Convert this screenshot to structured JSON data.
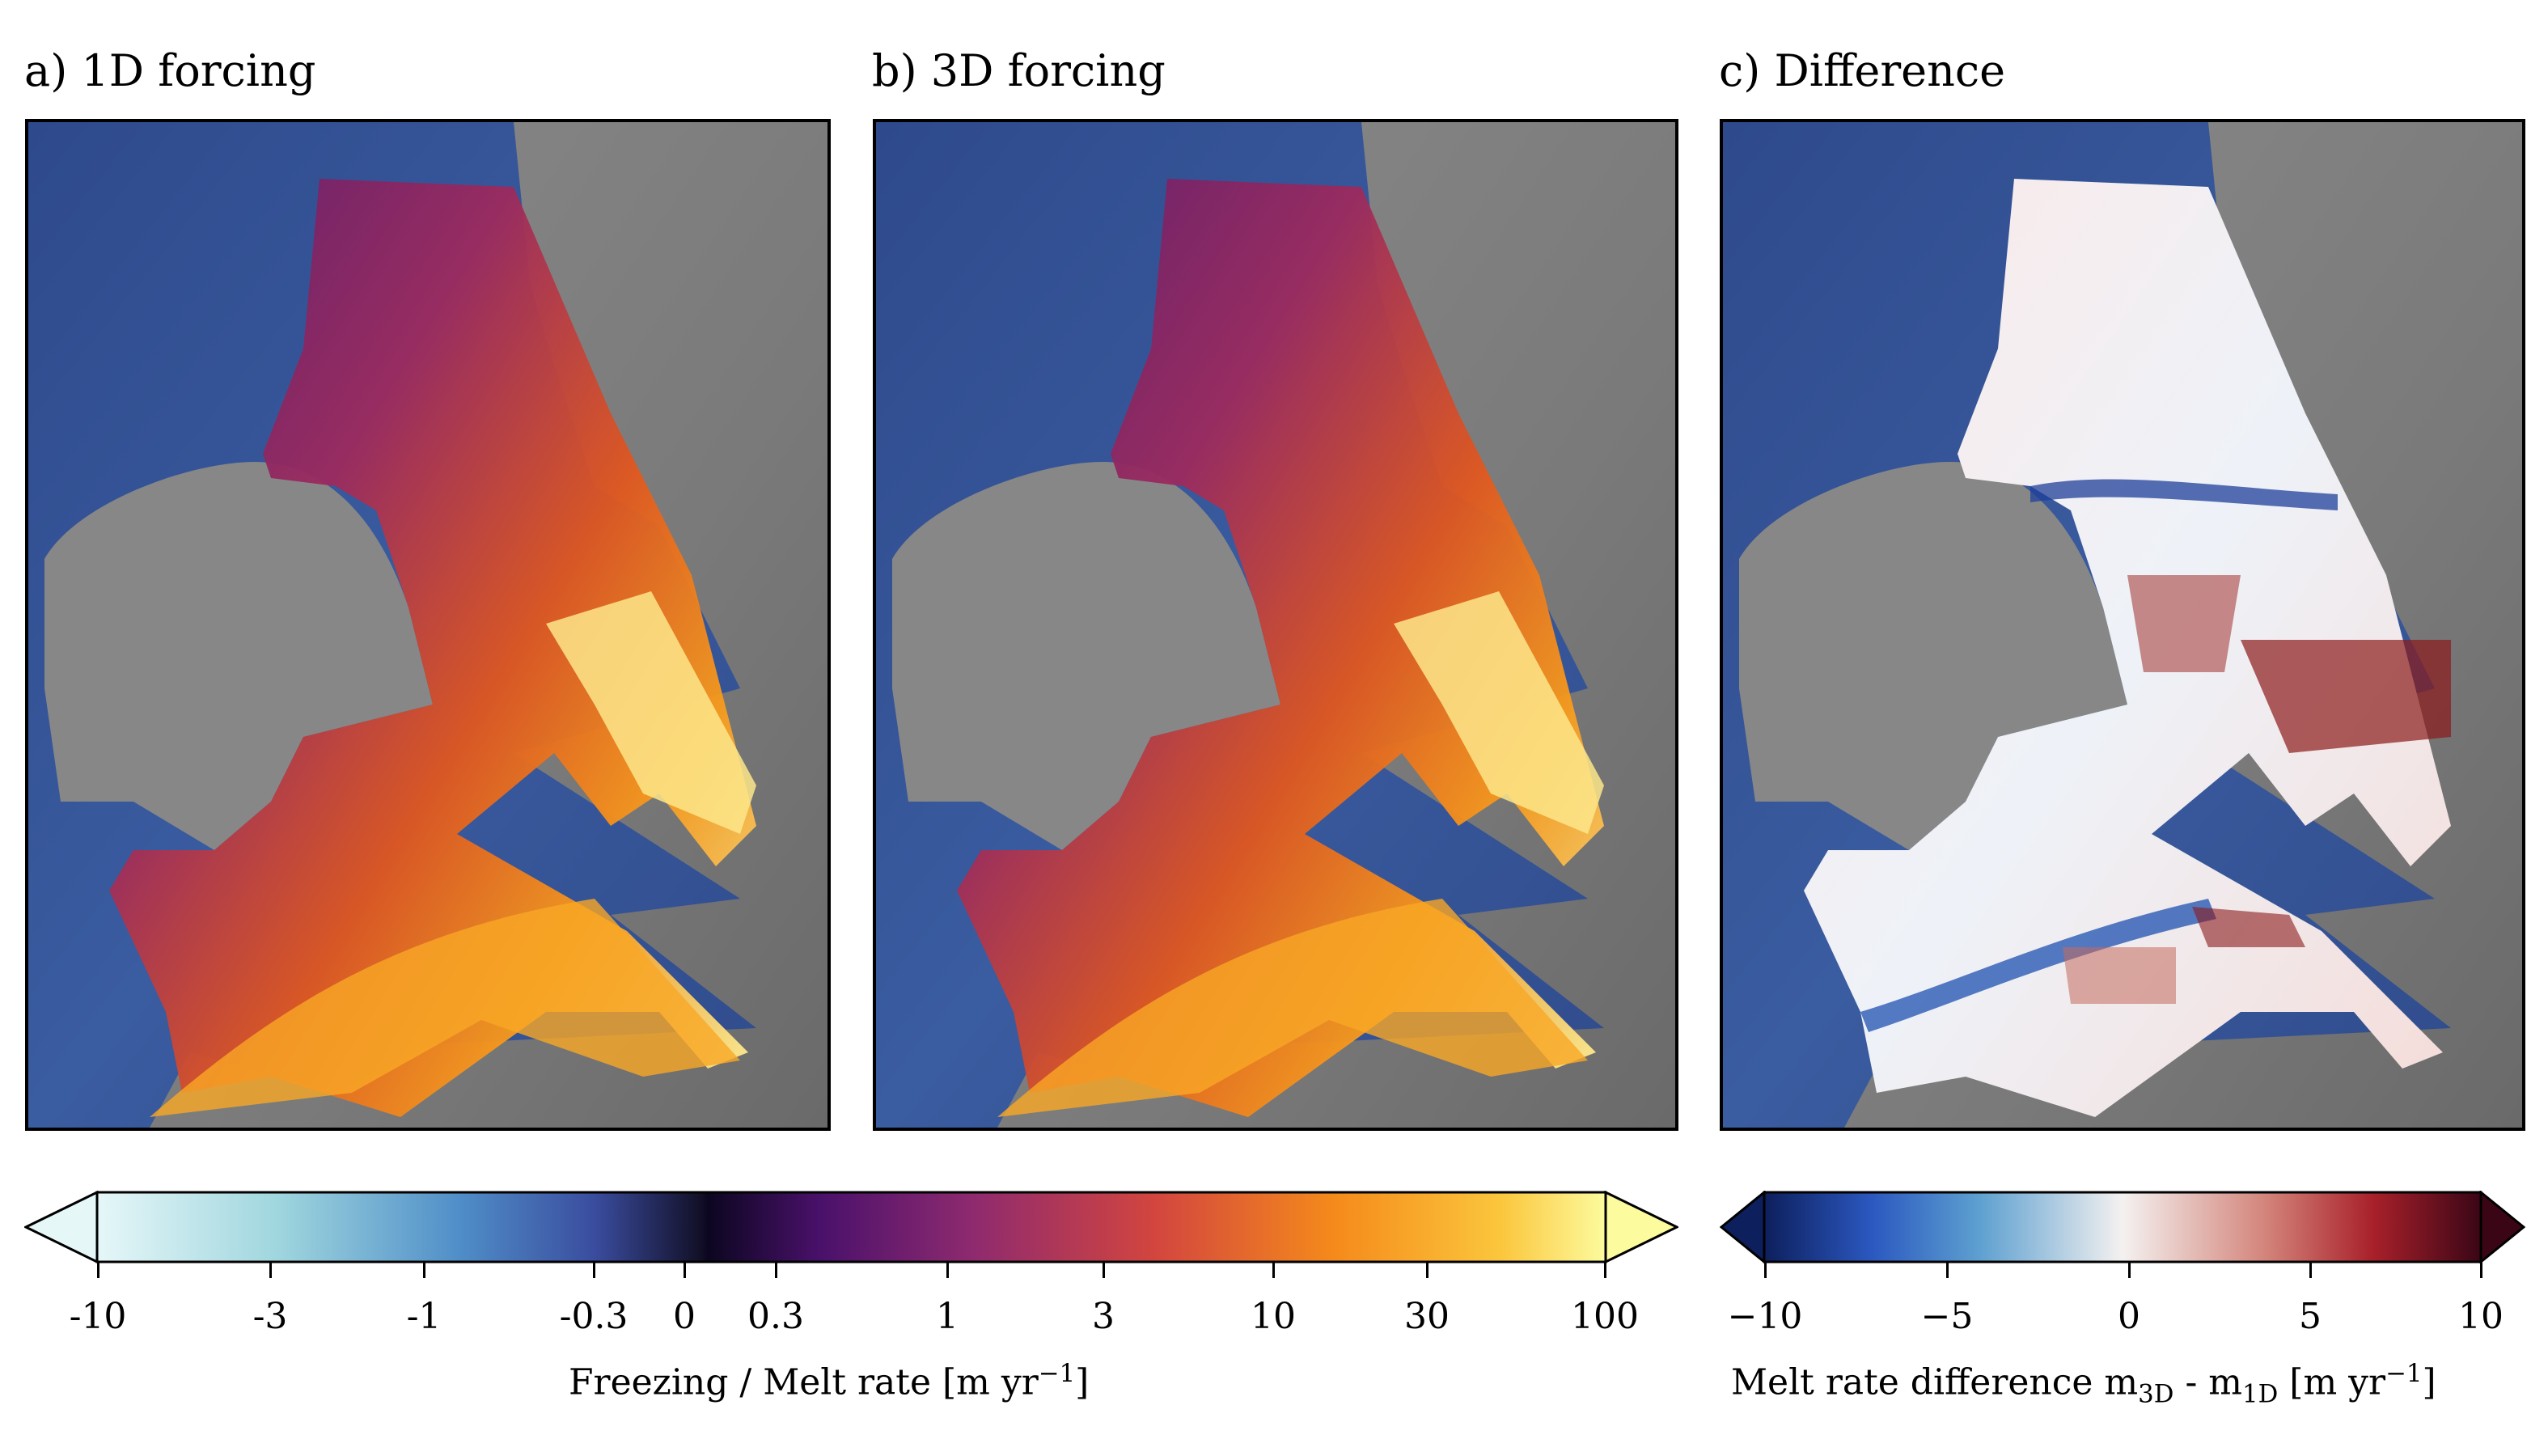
{
  "panels": [
    {
      "key": "a",
      "title": "a) 1D forcing"
    },
    {
      "key": "b",
      "title": "b) 3D forcing"
    },
    {
      "key": "c",
      "title": "c) Difference"
    }
  ],
  "colorbar_melt": {
    "ticks": [
      "-10",
      "-3",
      "-1",
      "-0.3",
      "0",
      "0.3",
      "1",
      "3",
      "10",
      "30",
      "100"
    ],
    "label_main": "Freezing / Melt rate [m yr",
    "label_exp": "−1",
    "label_end": "]"
  },
  "colorbar_diff": {
    "ticks": [
      "−10",
      "−5",
      "0",
      "5",
      "10"
    ],
    "label_prefix": "Melt rate difference m",
    "sub1": "3D",
    "label_mid": " - m",
    "sub2": "1D",
    "label_units": " [m yr",
    "label_exp": "−1",
    "label_end": "]"
  },
  "chart_data": [
    {
      "type": "heatmap",
      "title": "a) 1D forcing",
      "colorbar_label": "Freezing / Melt rate [m yr−1]",
      "colorbar_ticks": [
        -10,
        -3,
        -1,
        -0.3,
        0,
        0.3,
        1,
        3,
        10,
        30,
        100
      ],
      "colormap": "ice (freezing) / inferno (melt)"
    },
    {
      "type": "heatmap",
      "title": "b) 3D forcing",
      "colorbar_label": "Freezing / Melt rate [m yr−1]",
      "colorbar_ticks": [
        -10,
        -3,
        -1,
        -0.3,
        0,
        0.3,
        1,
        3,
        10,
        30,
        100
      ],
      "colormap": "ice (freezing) / inferno (melt)"
    },
    {
      "type": "heatmap",
      "title": "c) Difference",
      "colorbar_label": "Melt rate difference m3D - m1D [m yr−1]",
      "colorbar_ticks": [
        -10,
        -5,
        0,
        5,
        10
      ],
      "colormap": "diverging blue-white-red"
    }
  ],
  "colors": {
    "ocean": "#3a4f8f",
    "land": "#808080",
    "melt_low": "#4a1a6a",
    "melt_high": "#fde68a",
    "diff_neg": "#1e4fa0",
    "diff_pos": "#8b1a1a"
  }
}
